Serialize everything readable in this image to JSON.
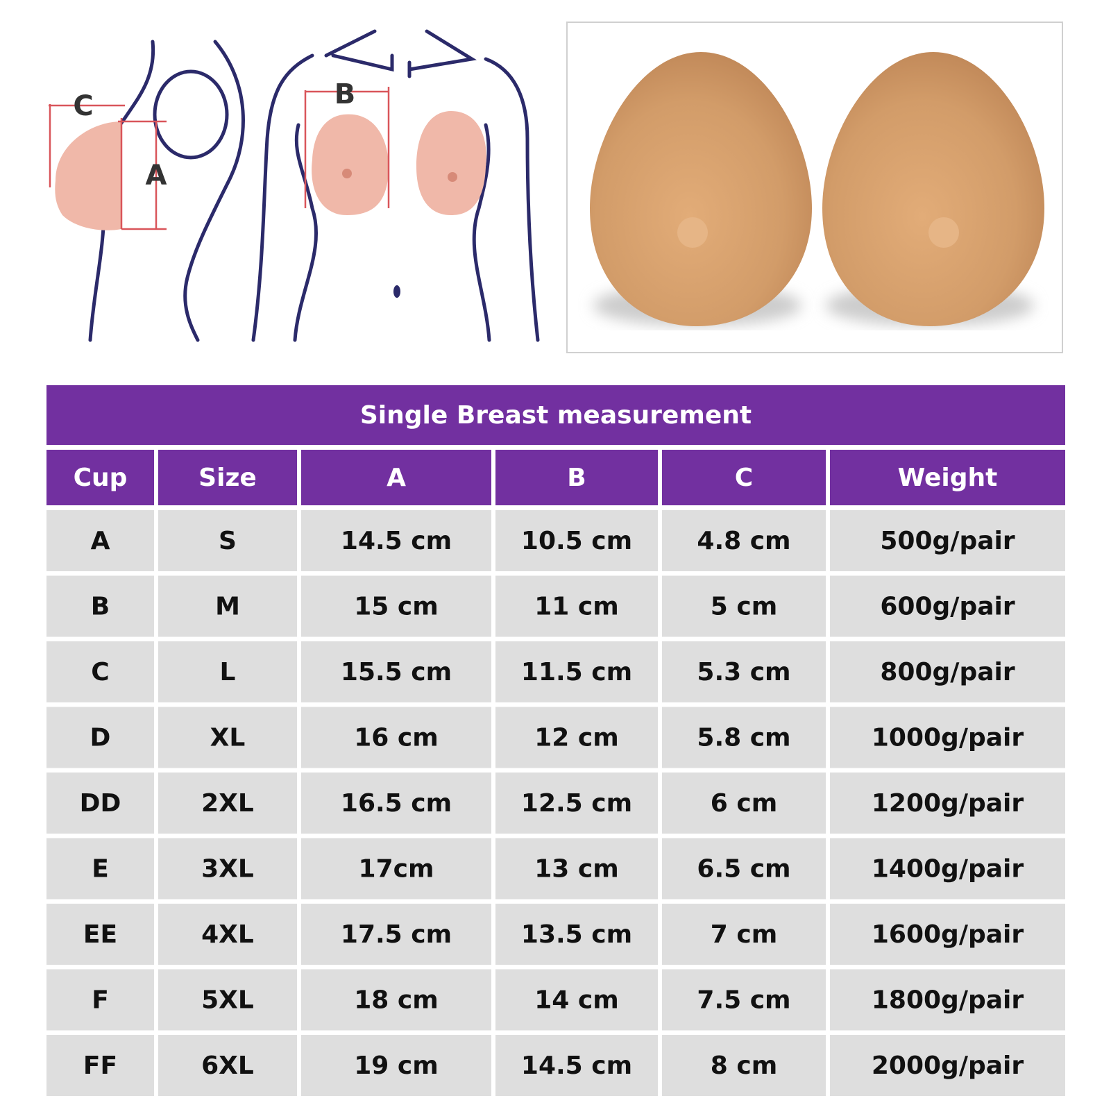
{
  "diagram": {
    "labels": [
      "C",
      "B",
      "A"
    ]
  },
  "table": {
    "title": "Single Breast measurement",
    "header": [
      "Cup",
      "Size",
      "A",
      "B",
      "C",
      "Weight"
    ],
    "rows": [
      [
        "A",
        "S",
        "14.5 cm",
        "10.5 cm",
        "4.8 cm",
        "500g/pair"
      ],
      [
        "B",
        "M",
        "15 cm",
        "11 cm",
        "5 cm",
        "600g/pair"
      ],
      [
        "C",
        "L",
        "15.5 cm",
        "11.5 cm",
        "5.3 cm",
        "800g/pair"
      ],
      [
        "D",
        "XL",
        "16 cm",
        "12 cm",
        "5.8 cm",
        "1000g/pair"
      ],
      [
        "DD",
        "2XL",
        "16.5 cm",
        "12.5 cm",
        "6 cm",
        "1200g/pair"
      ],
      [
        "E",
        "3XL",
        "17cm",
        "13 cm",
        "6.5 cm",
        "1400g/pair"
      ],
      [
        "EE",
        "4XL",
        "17.5 cm",
        "13.5 cm",
        "7 cm",
        "1600g/pair"
      ],
      [
        "F",
        "5XL",
        "18 cm",
        "14 cm",
        "7.5 cm",
        "1800g/pair"
      ],
      [
        "FF",
        "6XL",
        "19 cm",
        "14.5 cm",
        "8 cm",
        "2000g/pair"
      ]
    ]
  }
}
